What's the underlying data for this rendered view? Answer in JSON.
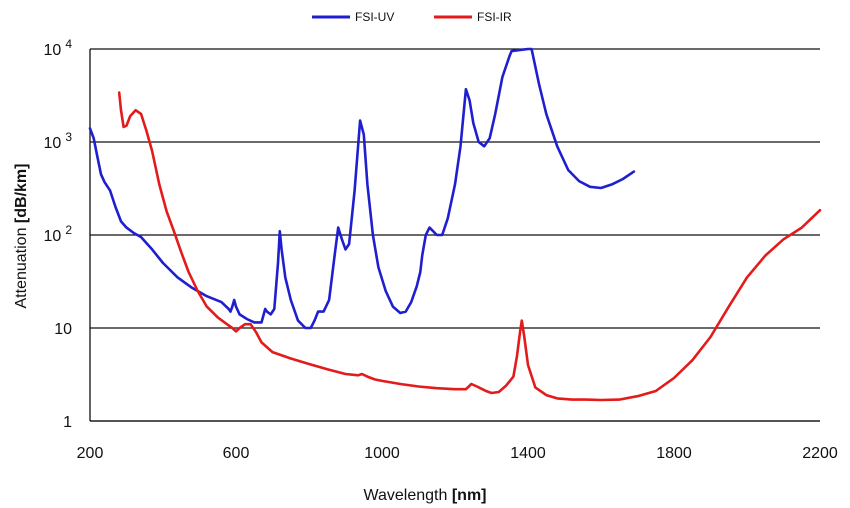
{
  "chart_data": {
    "type": "line",
    "title": "",
    "xlabel": "Wavelength",
    "xlabel_unit": "[nm]",
    "ylabel": "Attenuation",
    "ylabel_unit": "[dB/km]",
    "xlim": [
      200,
      2200
    ],
    "ylim": [
      1,
      10000
    ],
    "y_scale": "log",
    "x_ticks": [
      "200",
      "600",
      "1000",
      "1400",
      "1800",
      "2200"
    ],
    "y_ticks": [
      {
        "base": "1",
        "exp": ""
      },
      {
        "base": "10",
        "exp": ""
      },
      {
        "base": "10",
        "exp": "2"
      },
      {
        "base": "10",
        "exp": "3"
      },
      {
        "base": "10",
        "exp": "4"
      }
    ],
    "grid": "horizontal",
    "legend_position": "top",
    "series": [
      {
        "name": "FSI-UV",
        "color": "#1f1fd0",
        "points": [
          [
            200,
            1400
          ],
          [
            210,
            1100
          ],
          [
            220,
            700
          ],
          [
            230,
            450
          ],
          [
            240,
            370
          ],
          [
            255,
            300
          ],
          [
            270,
            200
          ],
          [
            285,
            140
          ],
          [
            300,
            120
          ],
          [
            320,
            105
          ],
          [
            340,
            95
          ],
          [
            370,
            70
          ],
          [
            400,
            50
          ],
          [
            440,
            35
          ],
          [
            480,
            27
          ],
          [
            520,
            22
          ],
          [
            560,
            19
          ],
          [
            580,
            16
          ],
          [
            585,
            15
          ],
          [
            590,
            17
          ],
          [
            595,
            20
          ],
          [
            600,
            17
          ],
          [
            610,
            14
          ],
          [
            630,
            12.5
          ],
          [
            650,
            11.5
          ],
          [
            670,
            11.5
          ],
          [
            680,
            16
          ],
          [
            685,
            15
          ],
          [
            695,
            14
          ],
          [
            705,
            16
          ],
          [
            715,
            50
          ],
          [
            720,
            110
          ],
          [
            725,
            70
          ],
          [
            735,
            35
          ],
          [
            750,
            20
          ],
          [
            770,
            12
          ],
          [
            790,
            10
          ],
          [
            805,
            10
          ],
          [
            815,
            12
          ],
          [
            825,
            15
          ],
          [
            840,
            15
          ],
          [
            855,
            20
          ],
          [
            870,
            60
          ],
          [
            880,
            120
          ],
          [
            890,
            90
          ],
          [
            900,
            70
          ],
          [
            910,
            80
          ],
          [
            925,
            300
          ],
          [
            940,
            1700
          ],
          [
            950,
            1200
          ],
          [
            960,
            350
          ],
          [
            975,
            100
          ],
          [
            990,
            45
          ],
          [
            1010,
            25
          ],
          [
            1030,
            17
          ],
          [
            1050,
            14.5
          ],
          [
            1065,
            15
          ],
          [
            1080,
            19
          ],
          [
            1095,
            28
          ],
          [
            1105,
            40
          ],
          [
            1110,
            60
          ],
          [
            1120,
            100
          ],
          [
            1130,
            120
          ],
          [
            1140,
            110
          ],
          [
            1150,
            100
          ],
          [
            1165,
            100
          ],
          [
            1180,
            150
          ],
          [
            1200,
            350
          ],
          [
            1215,
            900
          ],
          [
            1230,
            3700
          ],
          [
            1240,
            2800
          ],
          [
            1250,
            1600
          ],
          [
            1265,
            1000
          ],
          [
            1280,
            900
          ],
          [
            1295,
            1100
          ],
          [
            1310,
            2000
          ],
          [
            1330,
            5000
          ],
          [
            1350,
            8500
          ],
          [
            1355,
            9500
          ],
          [
            1400,
            10000
          ],
          [
            1410,
            10000
          ],
          [
            1430,
            4200
          ],
          [
            1450,
            2000
          ],
          [
            1480,
            900
          ],
          [
            1510,
            500
          ],
          [
            1540,
            380
          ],
          [
            1570,
            330
          ],
          [
            1600,
            320
          ],
          [
            1630,
            350
          ],
          [
            1660,
            400
          ],
          [
            1690,
            480
          ]
        ]
      },
      {
        "name": "FSI-IR",
        "color": "#e31b1b",
        "points": [
          [
            280,
            3400
          ],
          [
            285,
            2200
          ],
          [
            292,
            1450
          ],
          [
            300,
            1500
          ],
          [
            310,
            1900
          ],
          [
            325,
            2200
          ],
          [
            340,
            2000
          ],
          [
            355,
            1300
          ],
          [
            370,
            800
          ],
          [
            390,
            350
          ],
          [
            410,
            180
          ],
          [
            430,
            110
          ],
          [
            450,
            65
          ],
          [
            470,
            40
          ],
          [
            495,
            25
          ],
          [
            520,
            17
          ],
          [
            550,
            13
          ],
          [
            575,
            11
          ],
          [
            590,
            10
          ],
          [
            600,
            9.2
          ],
          [
            610,
            10
          ],
          [
            625,
            11
          ],
          [
            640,
            11
          ],
          [
            655,
            9
          ],
          [
            670,
            7
          ],
          [
            700,
            5.5
          ],
          [
            750,
            4.7
          ],
          [
            800,
            4.1
          ],
          [
            850,
            3.6
          ],
          [
            900,
            3.2
          ],
          [
            935,
            3.1
          ],
          [
            945,
            3.2
          ],
          [
            960,
            3
          ],
          [
            980,
            2.8
          ],
          [
            1000,
            2.7
          ],
          [
            1050,
            2.5
          ],
          [
            1100,
            2.35
          ],
          [
            1150,
            2.25
          ],
          [
            1200,
            2.2
          ],
          [
            1230,
            2.2
          ],
          [
            1245,
            2.5
          ],
          [
            1260,
            2.35
          ],
          [
            1275,
            2.2
          ],
          [
            1285,
            2.1
          ],
          [
            1300,
            2
          ],
          [
            1320,
            2.05
          ],
          [
            1340,
            2.4
          ],
          [
            1360,
            3
          ],
          [
            1370,
            5
          ],
          [
            1378,
            9
          ],
          [
            1383,
            12
          ],
          [
            1390,
            8
          ],
          [
            1400,
            4
          ],
          [
            1420,
            2.3
          ],
          [
            1450,
            1.9
          ],
          [
            1480,
            1.75
          ],
          [
            1520,
            1.7
          ],
          [
            1560,
            1.7
          ],
          [
            1600,
            1.68
          ],
          [
            1650,
            1.7
          ],
          [
            1700,
            1.85
          ],
          [
            1750,
            2.1
          ],
          [
            1800,
            2.9
          ],
          [
            1850,
            4.5
          ],
          [
            1900,
            8
          ],
          [
            1950,
            17
          ],
          [
            2000,
            35
          ],
          [
            2050,
            60
          ],
          [
            2100,
            90
          ],
          [
            2150,
            120
          ],
          [
            2200,
            185
          ]
        ]
      }
    ]
  }
}
